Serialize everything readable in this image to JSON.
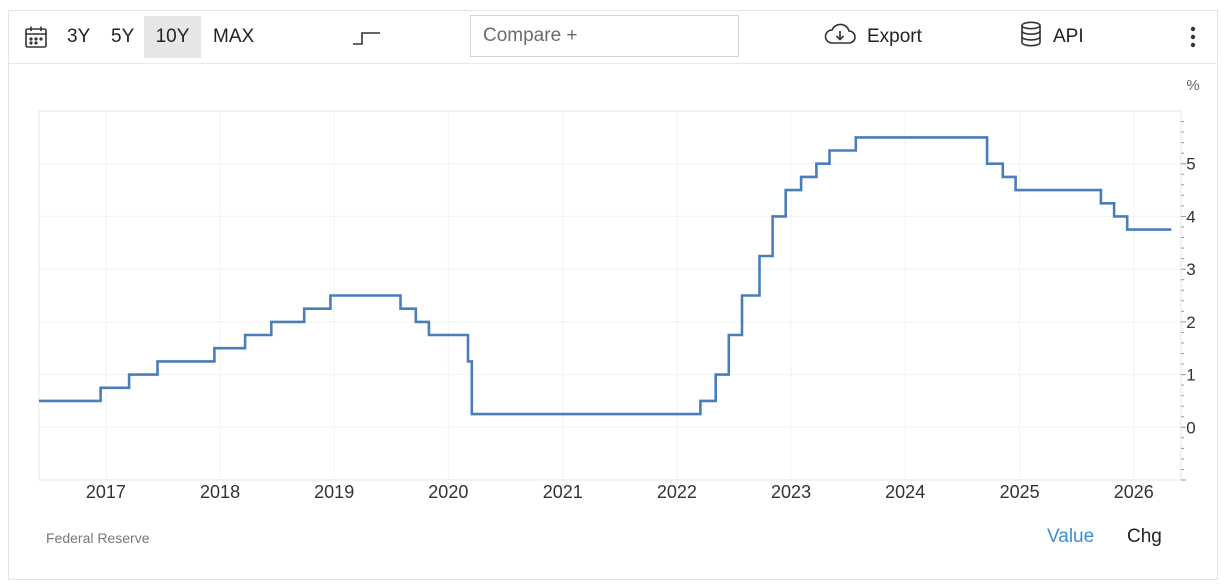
{
  "toolbar": {
    "ranges": [
      "3Y",
      "5Y",
      "10Y",
      "MAX"
    ],
    "active_range": "10Y",
    "compare_placeholder": "Compare +",
    "export_label": "Export",
    "api_label": "API",
    "icons": {
      "calendar": "calendar-icon",
      "step": "step-line-icon",
      "export": "cloud-download-icon",
      "api": "database-icon",
      "more": "more-vertical-icon"
    }
  },
  "footer": {
    "source": "Federal Reserve",
    "value_tab": "Value",
    "chg_tab": "Chg"
  },
  "colors": {
    "line": "#4a7ebb",
    "active_tab": "#3b8fd6",
    "grid": "#e6e6e6"
  },
  "chart_data": {
    "type": "line",
    "style": "step",
    "unit_label": "%",
    "xlim": [
      "2016-06-01",
      "2026-06-01"
    ],
    "ylim": [
      -1,
      6
    ],
    "yticks": [
      0,
      1,
      2,
      3,
      4,
      5
    ],
    "xticks": [
      "2017",
      "2018",
      "2019",
      "2020",
      "2021",
      "2022",
      "2023",
      "2024",
      "2025",
      "2026"
    ],
    "grid": true,
    "legend": "none",
    "series": [
      {
        "points": [
          [
            "2016-06-01",
            0.5
          ],
          [
            "2016-12-15",
            0.75
          ],
          [
            "2017-03-16",
            1.0
          ],
          [
            "2017-06-15",
            1.25
          ],
          [
            "2017-12-14",
            1.5
          ],
          [
            "2018-03-22",
            1.75
          ],
          [
            "2018-06-14",
            2.0
          ],
          [
            "2018-09-27",
            2.25
          ],
          [
            "2018-12-20",
            2.5
          ],
          [
            "2019-08-01",
            2.25
          ],
          [
            "2019-09-19",
            2.0
          ],
          [
            "2019-10-31",
            1.75
          ],
          [
            "2020-03-04",
            1.25
          ],
          [
            "2020-03-16",
            0.25
          ],
          [
            "2022-03-17",
            0.5
          ],
          [
            "2022-05-05",
            1.0
          ],
          [
            "2022-06-16",
            1.75
          ],
          [
            "2022-07-28",
            2.5
          ],
          [
            "2022-09-22",
            3.25
          ],
          [
            "2022-11-03",
            4.0
          ],
          [
            "2022-12-15",
            4.5
          ],
          [
            "2023-02-02",
            4.75
          ],
          [
            "2023-03-23",
            5.0
          ],
          [
            "2023-05-04",
            5.25
          ],
          [
            "2023-07-27",
            5.5
          ],
          [
            "2024-09-19",
            5.0
          ],
          [
            "2024-11-08",
            4.75
          ],
          [
            "2024-12-19",
            4.5
          ],
          [
            "2025-09-18",
            4.25
          ],
          [
            "2025-10-30",
            4.0
          ],
          [
            "2025-12-11",
            3.75
          ],
          [
            "2026-05-01",
            3.75
          ]
        ]
      }
    ]
  }
}
